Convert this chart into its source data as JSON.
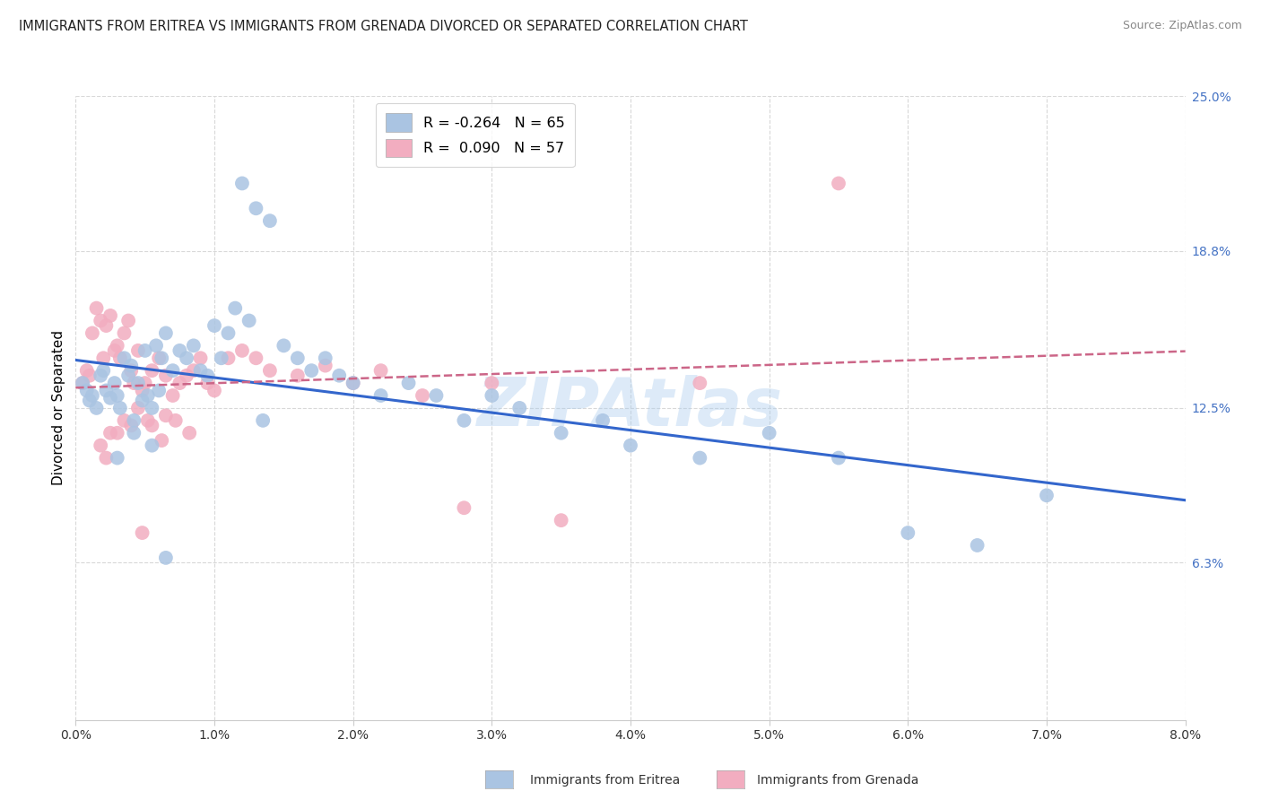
{
  "title": "IMMIGRANTS FROM ERITREA VS IMMIGRANTS FROM GRENADA DIVORCED OR SEPARATED CORRELATION CHART",
  "source": "Source: ZipAtlas.com",
  "xlabel_ticks": [
    "0.0%",
    "1.0%",
    "2.0%",
    "3.0%",
    "4.0%",
    "5.0%",
    "6.0%",
    "7.0%",
    "8.0%"
  ],
  "xlabel_vals": [
    0.0,
    1.0,
    2.0,
    3.0,
    4.0,
    5.0,
    6.0,
    7.0,
    8.0
  ],
  "ylabel_ticks": [
    "6.3%",
    "12.5%",
    "18.8%",
    "25.0%"
  ],
  "ylabel_vals": [
    6.3,
    12.5,
    18.8,
    25.0
  ],
  "ylabel_label": "Divorced or Separated",
  "xlim": [
    0.0,
    8.0
  ],
  "ylim": [
    0.0,
    25.0
  ],
  "background_color": "#ffffff",
  "grid_color": "#d8d8d8",
  "eritrea_color": "#aac4e2",
  "grenada_color": "#f2adc0",
  "eritrea_line_color": "#3366cc",
  "grenada_line_color": "#cc6688",
  "legend_R_eritrea": "-0.264",
  "legend_N_eritrea": "65",
  "legend_R_grenada": "0.090",
  "legend_N_grenada": "57",
  "watermark": "ZIPAtlas",
  "eritrea_x": [
    0.05,
    0.08,
    0.1,
    0.12,
    0.15,
    0.18,
    0.2,
    0.22,
    0.25,
    0.28,
    0.3,
    0.32,
    0.35,
    0.38,
    0.4,
    0.42,
    0.45,
    0.48,
    0.5,
    0.52,
    0.55,
    0.58,
    0.6,
    0.62,
    0.65,
    0.7,
    0.75,
    0.8,
    0.85,
    0.9,
    0.95,
    1.0,
    1.05,
    1.1,
    1.15,
    1.2,
    1.25,
    1.3,
    1.4,
    1.5,
    1.6,
    1.7,
    1.8,
    1.9,
    2.0,
    2.2,
    2.4,
    2.6,
    2.8,
    3.0,
    3.2,
    3.5,
    3.8,
    4.0,
    4.5,
    5.0,
    5.5,
    6.0,
    6.5,
    7.0,
    1.35,
    0.42,
    0.55,
    0.3,
    0.65
  ],
  "eritrea_y": [
    13.5,
    13.2,
    12.8,
    13.0,
    12.5,
    13.8,
    14.0,
    13.2,
    12.9,
    13.5,
    13.0,
    12.5,
    14.5,
    13.8,
    14.2,
    12.0,
    13.5,
    12.8,
    14.8,
    13.0,
    12.5,
    15.0,
    13.2,
    14.5,
    15.5,
    14.0,
    14.8,
    14.5,
    15.0,
    14.0,
    13.8,
    15.8,
    14.5,
    15.5,
    16.5,
    21.5,
    16.0,
    20.5,
    20.0,
    15.0,
    14.5,
    14.0,
    14.5,
    13.8,
    13.5,
    13.0,
    13.5,
    13.0,
    12.0,
    13.0,
    12.5,
    11.5,
    12.0,
    11.0,
    10.5,
    11.5,
    10.5,
    7.5,
    7.0,
    9.0,
    12.0,
    11.5,
    11.0,
    10.5,
    6.5
  ],
  "grenada_x": [
    0.05,
    0.08,
    0.1,
    0.12,
    0.15,
    0.18,
    0.2,
    0.22,
    0.25,
    0.28,
    0.3,
    0.32,
    0.35,
    0.38,
    0.4,
    0.42,
    0.45,
    0.48,
    0.5,
    0.55,
    0.6,
    0.65,
    0.7,
    0.75,
    0.8,
    0.85,
    0.9,
    0.95,
    1.0,
    1.1,
    1.2,
    1.3,
    1.4,
    1.6,
    1.8,
    2.0,
    2.2,
    2.5,
    2.8,
    3.0,
    3.5,
    4.5,
    5.5,
    0.25,
    0.35,
    0.45,
    0.55,
    0.65,
    0.18,
    0.3,
    0.4,
    0.52,
    0.62,
    0.72,
    0.82,
    0.22,
    0.48
  ],
  "grenada_y": [
    13.5,
    14.0,
    13.8,
    15.5,
    16.5,
    16.0,
    14.5,
    15.8,
    16.2,
    14.8,
    15.0,
    14.5,
    15.5,
    16.0,
    14.0,
    13.5,
    14.8,
    13.2,
    13.5,
    14.0,
    14.5,
    13.8,
    13.0,
    13.5,
    13.8,
    14.0,
    14.5,
    13.5,
    13.2,
    14.5,
    14.8,
    14.5,
    14.0,
    13.8,
    14.2,
    13.5,
    14.0,
    13.0,
    8.5,
    13.5,
    8.0,
    13.5,
    21.5,
    11.5,
    12.0,
    12.5,
    11.8,
    12.2,
    11.0,
    11.5,
    11.8,
    12.0,
    11.2,
    12.0,
    11.5,
    10.5,
    7.5
  ]
}
